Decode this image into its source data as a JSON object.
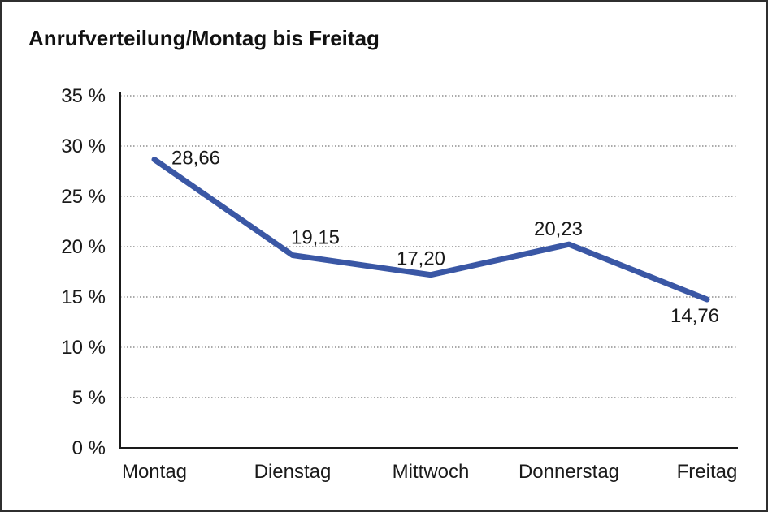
{
  "page": {
    "background": "#ffffff",
    "border_color": "#2f2f2f"
  },
  "chart_data": {
    "type": "line",
    "title": "Anrufverteilung/Montag bis Freitag",
    "categories": [
      "Montag",
      "Dienstag",
      "Mittwoch",
      "Donnerstag",
      "Freitag"
    ],
    "values": [
      28.66,
      19.15,
      17.2,
      20.23,
      14.76
    ],
    "value_labels": [
      "28,66",
      "19,15",
      "17,20",
      "20,23",
      "14,76"
    ],
    "xlabel": "",
    "ylabel": "",
    "ylim": [
      0,
      35
    ],
    "y_ticks": [
      0,
      5,
      10,
      15,
      20,
      25,
      30,
      35
    ],
    "y_tick_labels": [
      "0 %",
      "5 %",
      "10 %",
      "15 %",
      "20 %",
      "25 %",
      "30 %",
      "35 %"
    ],
    "grid": "horizontal-dotted",
    "legend": "none",
    "line_color": "#3a57a5",
    "axis_color": "#1a1a1a",
    "gridline_color": "#555555"
  }
}
